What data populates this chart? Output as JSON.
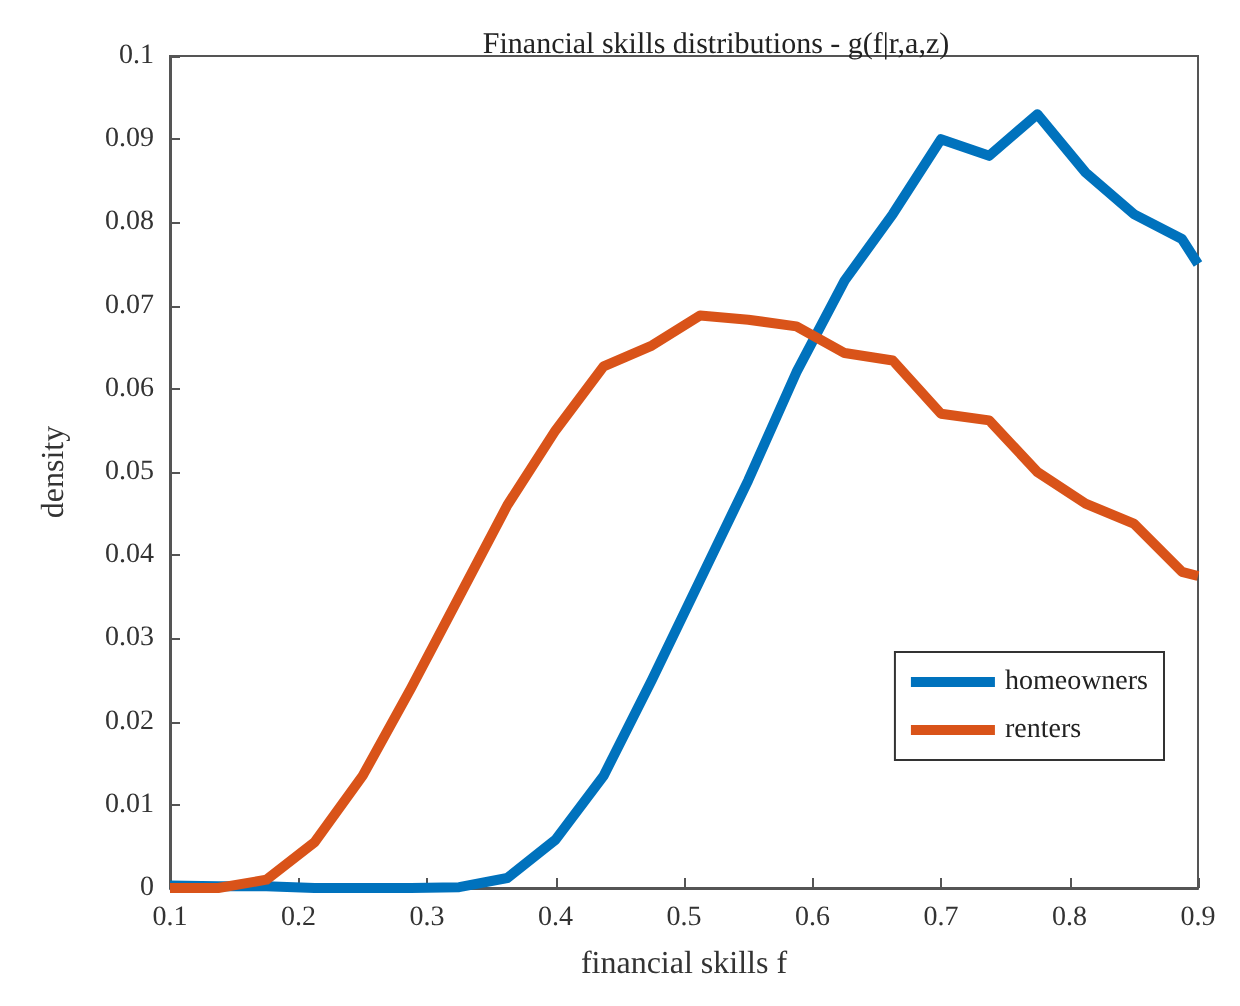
{
  "chart_data": {
    "type": "line",
    "title": "Financial skills distributions - g(f|r,a,z)",
    "xlabel": "financial skills f",
    "ylabel": "density",
    "x": [
      0.1,
      0.1375,
      0.175,
      0.2125,
      0.25,
      0.2875,
      0.325,
      0.3625,
      0.4,
      0.4375,
      0.475,
      0.5125,
      0.55,
      0.5875,
      0.625,
      0.6625,
      0.7,
      0.7375,
      0.775,
      0.8125,
      0.85,
      0.8875,
      0.9
    ],
    "series": [
      {
        "name": "homeowners",
        "color": "#0072bd",
        "values": [
          0.0003,
          0.0002,
          0.0002,
          0,
          0,
          0,
          0.0001,
          0.0012,
          0.0058,
          0.0135,
          0.025,
          0.037,
          0.049,
          0.062,
          0.073,
          0.081,
          0.09,
          0.088,
          0.093,
          0.086,
          0.081,
          0.078,
          0.075
        ]
      },
      {
        "name": "renters",
        "color": "#d95319",
        "values": [
          0,
          0,
          0.001,
          0.0055,
          0.0135,
          0.024,
          0.035,
          0.046,
          0.055,
          0.0627,
          0.0652,
          0.0688,
          0.0683,
          0.0675,
          0.0643,
          0.0634,
          0.057,
          0.0562,
          0.05,
          0.0462,
          0.0438,
          0.038,
          0.0375
        ]
      }
    ],
    "xlim": [
      0.1,
      0.9
    ],
    "xticks": [
      0.1,
      0.2,
      0.3,
      0.4,
      0.5,
      0.6,
      0.7,
      0.8,
      0.9
    ],
    "ylim": [
      0,
      0.1
    ],
    "yticks": [
      0,
      0.01,
      0.02,
      0.03,
      0.04,
      0.05,
      0.06,
      0.07,
      0.08,
      0.09,
      0.1
    ],
    "grid": false,
    "legend": "right",
    "marker": "none",
    "line_style": "solid"
  }
}
